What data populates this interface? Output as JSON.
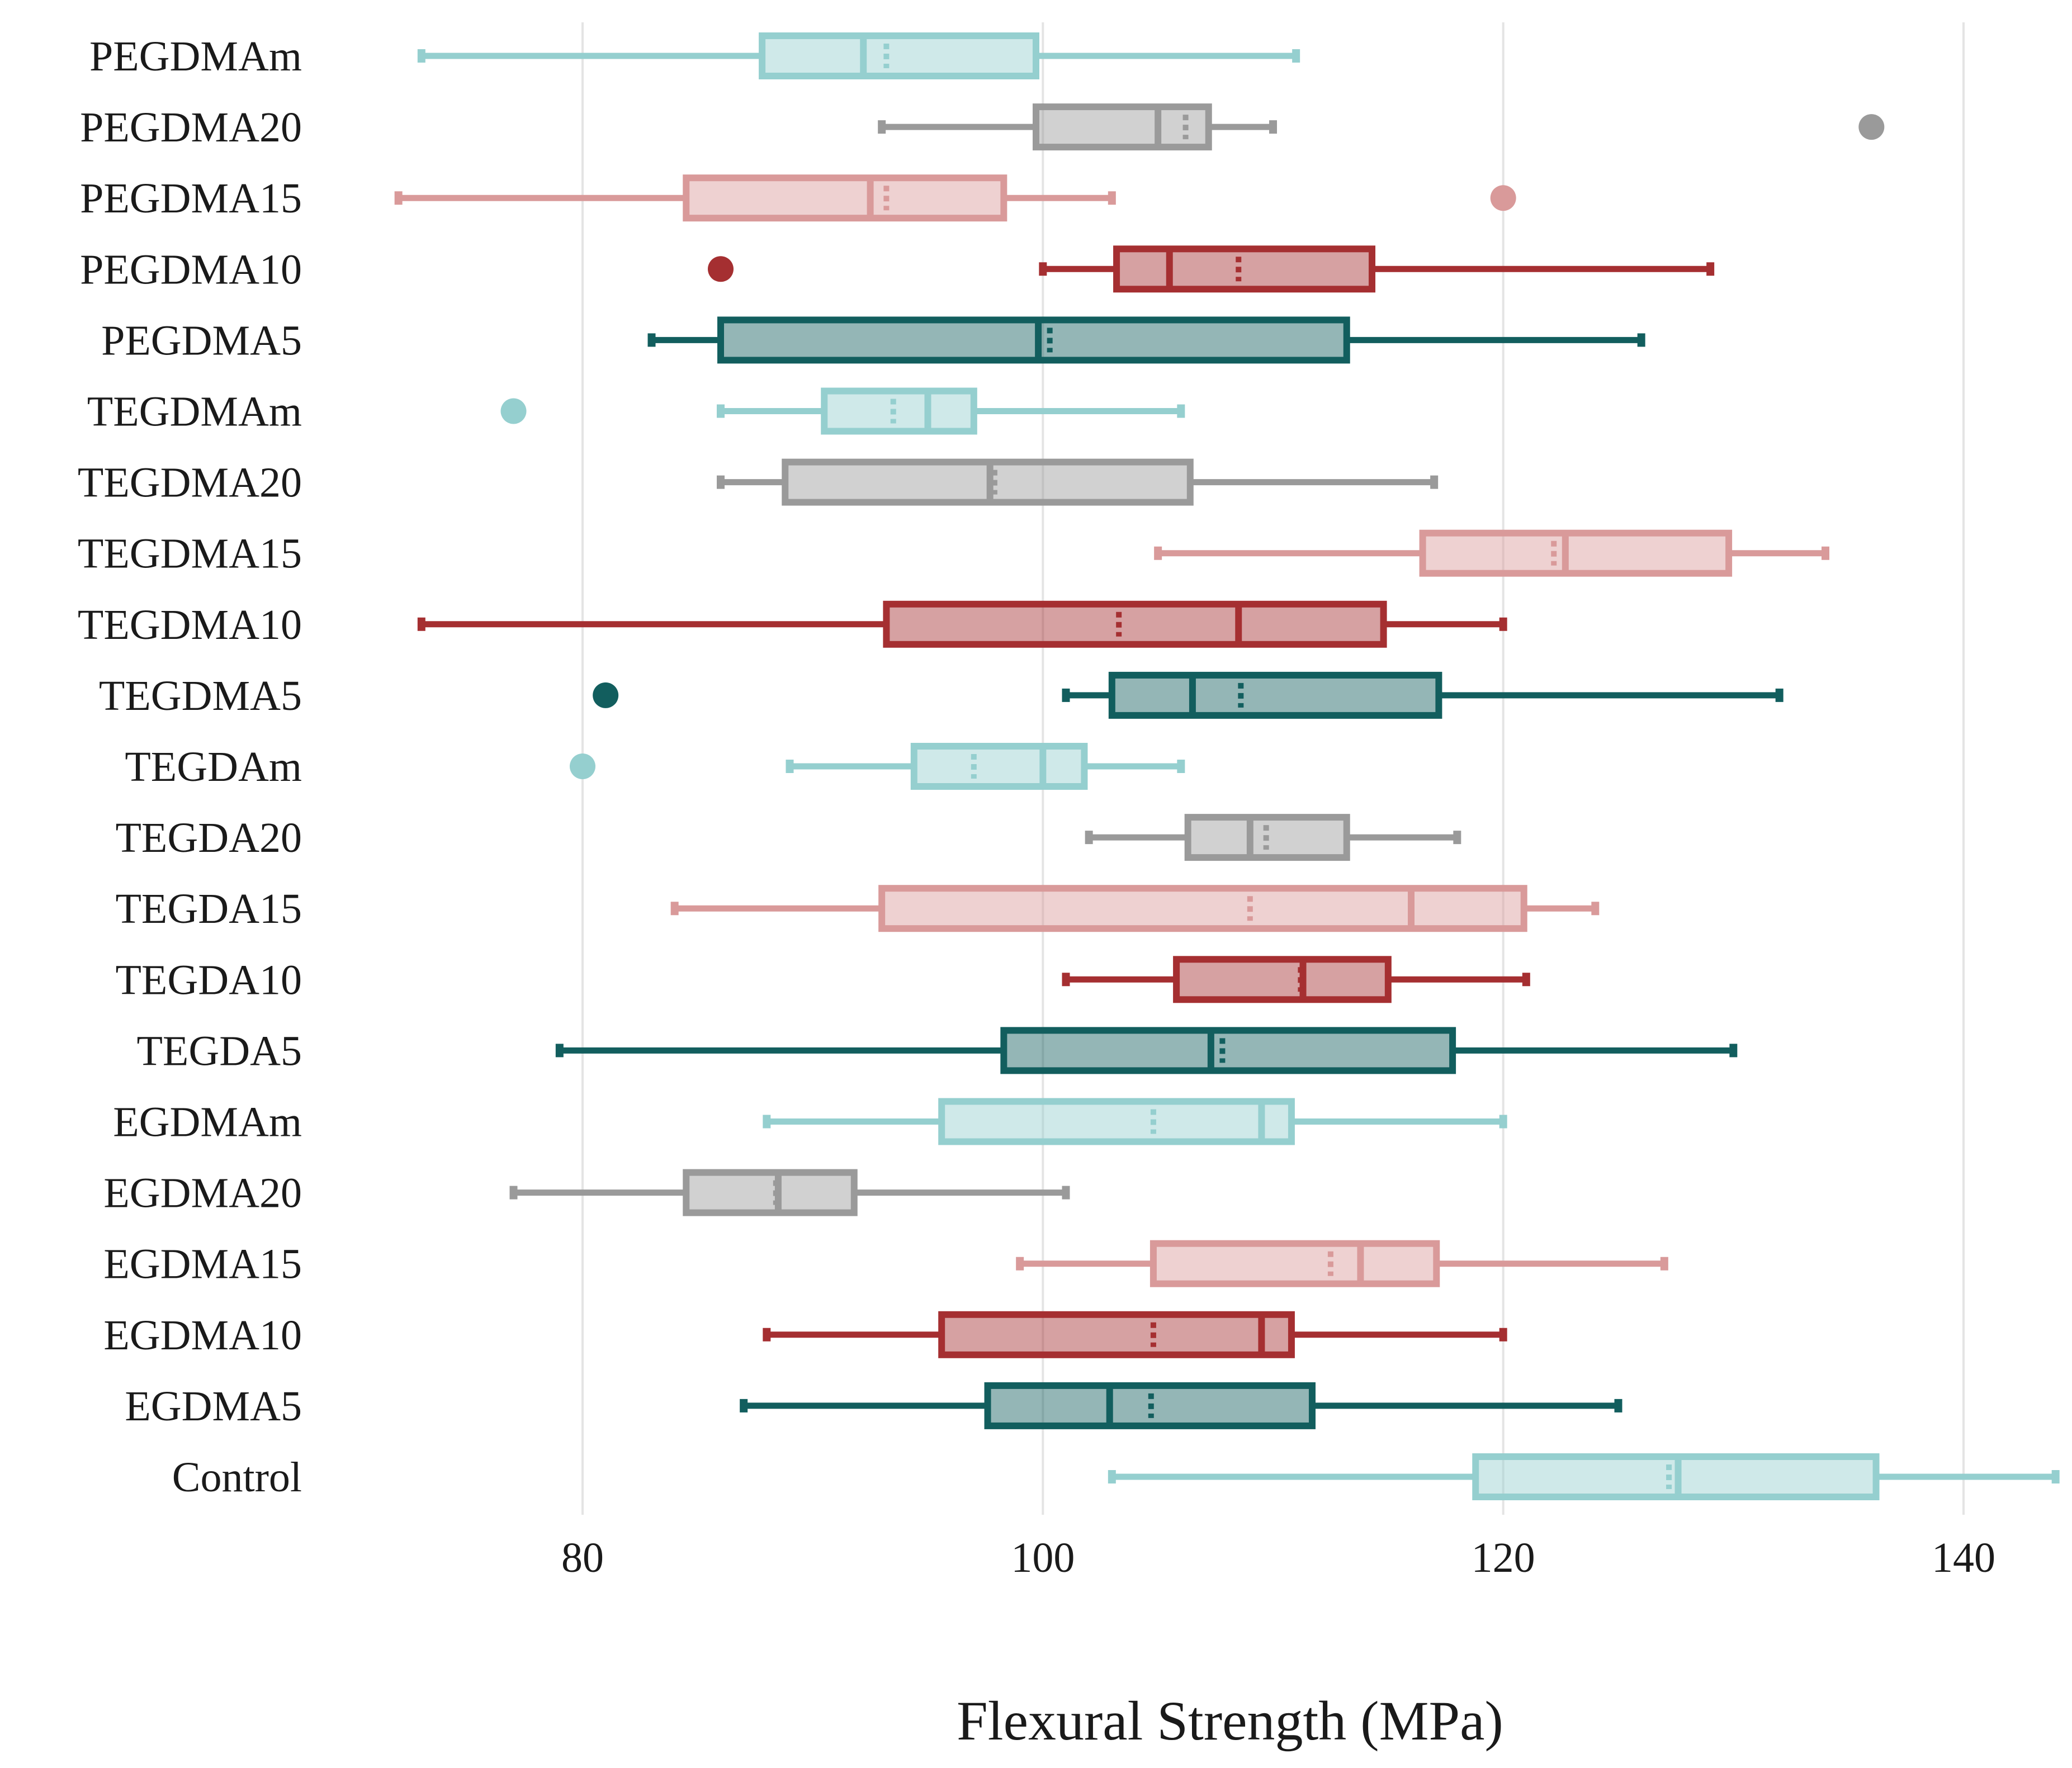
{
  "chart_data": {
    "type": "boxplot-horizontal",
    "xlabel": "Flexural Strength (MPa)",
    "xlim": [
      71,
      143
    ],
    "xticks": [
      80,
      100,
      120,
      140
    ],
    "grid": "vertical",
    "colors": {
      "light_teal": "#95cfcf",
      "grey": "#9a9a9a",
      "light_red": "#d99a9a",
      "dark_red": "#a52f31",
      "dark_teal": "#125e5e"
    },
    "series": [
      {
        "name": "PEGDMAm",
        "color": "light_teal",
        "whisker_low": 73,
        "q1": 87.8,
        "median": 92.2,
        "mean": 93.2,
        "q3": 99.7,
        "whisker_high": 111,
        "outliers": []
      },
      {
        "name": "PEGDMA20",
        "color": "grey",
        "whisker_low": 93,
        "q1": 99.7,
        "median": 105,
        "mean": 106.2,
        "q3": 107.2,
        "whisker_high": 110,
        "outliers": [
          136
        ]
      },
      {
        "name": "PEGDMA15",
        "color": "light_red",
        "whisker_low": 72,
        "q1": 84.5,
        "median": 92.5,
        "mean": 93.2,
        "q3": 98.3,
        "whisker_high": 103,
        "outliers": [
          120
        ]
      },
      {
        "name": "PEGDMA10",
        "color": "dark_red",
        "whisker_low": 100,
        "q1": 103.2,
        "median": 105.5,
        "mean": 108.5,
        "q3": 114.3,
        "whisker_high": 129,
        "outliers": [
          86
        ]
      },
      {
        "name": "PEGDMA5",
        "color": "dark_teal",
        "whisker_low": 83,
        "q1": 86,
        "median": 99.8,
        "mean": 100.3,
        "q3": 113.2,
        "whisker_high": 126,
        "outliers": []
      },
      {
        "name": "TEGDMAm",
        "color": "light_teal",
        "whisker_low": 86,
        "q1": 90.5,
        "median": 95,
        "mean": 93.5,
        "q3": 97,
        "whisker_high": 106,
        "outliers": [
          77
        ]
      },
      {
        "name": "TEGDMA20",
        "color": "grey",
        "whisker_low": 86,
        "q1": 88.8,
        "median": 97.7,
        "mean": 97.9,
        "q3": 106.4,
        "whisker_high": 117,
        "outliers": []
      },
      {
        "name": "TEGDMA15",
        "color": "light_red",
        "whisker_low": 105,
        "q1": 116.5,
        "median": 122.7,
        "mean": 122.2,
        "q3": 129.8,
        "whisker_high": 134,
        "outliers": []
      },
      {
        "name": "TEGDMA10",
        "color": "dark_red",
        "whisker_low": 73,
        "q1": 93.2,
        "median": 108.5,
        "mean": 103.3,
        "q3": 114.8,
        "whisker_high": 120,
        "outliers": []
      },
      {
        "name": "TEGDMA5",
        "color": "dark_teal",
        "whisker_low": 101,
        "q1": 103,
        "median": 106.5,
        "mean": 108.6,
        "q3": 117.2,
        "whisker_high": 132,
        "outliers": [
          81
        ]
      },
      {
        "name": "TEGDAm",
        "color": "light_teal",
        "whisker_low": 89,
        "q1": 94.4,
        "median": 100,
        "mean": 97,
        "q3": 101.8,
        "whisker_high": 106,
        "outliers": [
          80
        ]
      },
      {
        "name": "TEGDA20",
        "color": "grey",
        "whisker_low": 102,
        "q1": 106.3,
        "median": 109,
        "mean": 109.7,
        "q3": 113.2,
        "whisker_high": 118,
        "outliers": []
      },
      {
        "name": "TEGDA15",
        "color": "light_red",
        "whisker_low": 84,
        "q1": 93,
        "median": 116,
        "mean": 109,
        "q3": 120.9,
        "whisker_high": 124,
        "outliers": []
      },
      {
        "name": "TEGDA10",
        "color": "dark_red",
        "whisker_low": 101,
        "q1": 105.8,
        "median": 111.3,
        "mean": 111.2,
        "q3": 115,
        "whisker_high": 121,
        "outliers": []
      },
      {
        "name": "TEGDA5",
        "color": "dark_teal",
        "whisker_low": 79,
        "q1": 98.3,
        "median": 107.3,
        "mean": 107.8,
        "q3": 117.8,
        "whisker_high": 130,
        "outliers": []
      },
      {
        "name": "EGDMAm",
        "color": "light_teal",
        "whisker_low": 88,
        "q1": 95.6,
        "median": 109.5,
        "mean": 104.8,
        "q3": 110.8,
        "whisker_high": 120,
        "outliers": []
      },
      {
        "name": "EGDMA20",
        "color": "grey",
        "whisker_low": 77,
        "q1": 84.5,
        "median": 88.5,
        "mean": 88.4,
        "q3": 91.8,
        "whisker_high": 101,
        "outliers": []
      },
      {
        "name": "EGDMA15",
        "color": "light_red",
        "whisker_low": 99,
        "q1": 104.8,
        "median": 113.8,
        "mean": 112.5,
        "q3": 117.1,
        "whisker_high": 127,
        "outliers": []
      },
      {
        "name": "EGDMA10",
        "color": "dark_red",
        "whisker_low": 88,
        "q1": 95.6,
        "median": 109.5,
        "mean": 104.8,
        "q3": 110.8,
        "whisker_high": 120,
        "outliers": []
      },
      {
        "name": "EGDMA5",
        "color": "dark_teal",
        "whisker_low": 87,
        "q1": 97.6,
        "median": 102.9,
        "mean": 104.7,
        "q3": 111.7,
        "whisker_high": 125,
        "outliers": []
      },
      {
        "name": "Control",
        "color": "light_teal",
        "whisker_low": 103,
        "q1": 118.8,
        "median": 127.6,
        "mean": 127.2,
        "q3": 136.2,
        "whisker_high": 144,
        "outliers": []
      }
    ]
  }
}
